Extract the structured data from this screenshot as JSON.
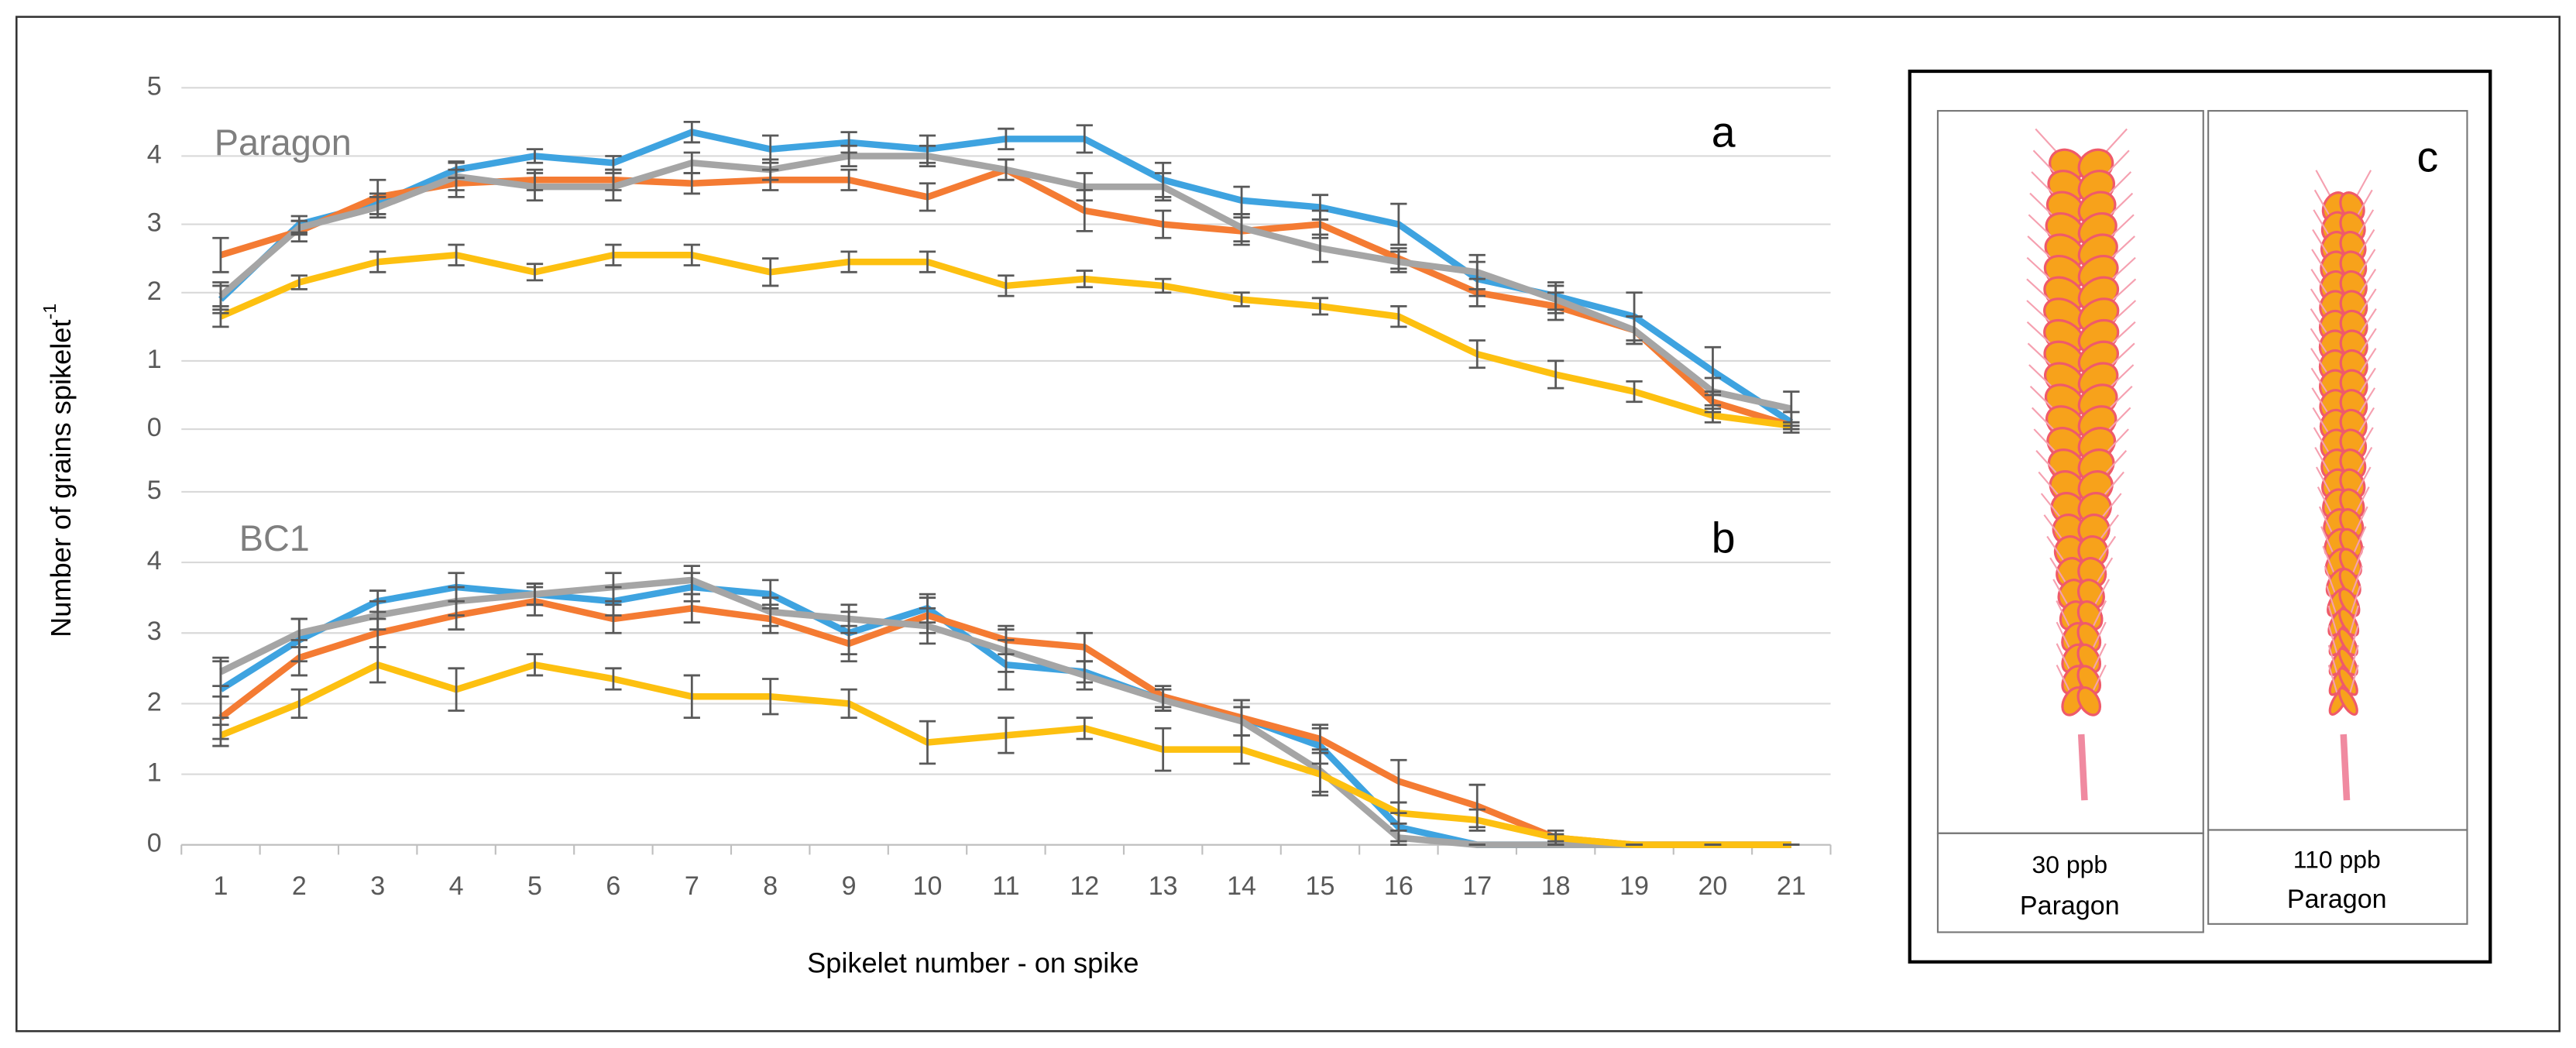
{
  "chart_data": [
    {
      "type": "line",
      "annotation": "Paragon",
      "panel_label": "a",
      "ylabel": "Number of grains spikelet",
      "ylabel_superscript": "-1",
      "ylim": [
        0,
        5
      ],
      "yticks": [
        0,
        1,
        2,
        3,
        4,
        5
      ],
      "grid": true,
      "series": [
        {
          "color": "#3ea3e0",
          "values": [
            1.9,
            3.0,
            3.3,
            3.8,
            4.0,
            3.9,
            4.35,
            4.1,
            4.2,
            4.1,
            4.25,
            4.25,
            3.65,
            3.35,
            3.25,
            3.0,
            2.2,
            1.95,
            1.65,
            0.85,
            0.1
          ],
          "errors": [
            0.2,
            0.12,
            0.15,
            0.12,
            0.1,
            0.1,
            0.15,
            0.2,
            0.15,
            0.2,
            0.15,
            0.2,
            0.25,
            0.2,
            0.18,
            0.3,
            0.25,
            0.2,
            0.35,
            0.35,
            0.15
          ]
        },
        {
          "color": "#f47b33",
          "values": [
            2.55,
            2.9,
            3.4,
            3.6,
            3.65,
            3.65,
            3.6,
            3.65,
            3.65,
            3.4,
            3.8,
            3.2,
            3.0,
            2.9,
            3.0,
            2.5,
            2.0,
            1.8,
            1.45,
            0.4,
            0.05
          ],
          "errors": [
            0.25,
            0.15,
            0.25,
            0.2,
            0.15,
            0.15,
            0.15,
            0.15,
            0.15,
            0.2,
            0.15,
            0.3,
            0.2,
            0.2,
            0.2,
            0.15,
            0.2,
            0.2,
            0.2,
            0.15,
            0.05
          ]
        },
        {
          "color": "#a5a5a5",
          "values": [
            1.95,
            2.95,
            3.25,
            3.7,
            3.55,
            3.55,
            3.9,
            3.8,
            4.0,
            4.0,
            3.8,
            3.55,
            3.55,
            2.95,
            2.65,
            2.45,
            2.3,
            1.9,
            1.45,
            0.55,
            0.3
          ],
          "errors": [
            0.2,
            0.1,
            0.15,
            0.2,
            0.2,
            0.2,
            0.15,
            0.15,
            0.15,
            0.15,
            0.15,
            0.2,
            0.2,
            0.2,
            0.2,
            0.15,
            0.25,
            0.2,
            0.2,
            0.2,
            0.25
          ]
        },
        {
          "color": "#fdc010",
          "values": [
            1.65,
            2.15,
            2.45,
            2.55,
            2.3,
            2.55,
            2.55,
            2.3,
            2.45,
            2.45,
            2.1,
            2.2,
            2.1,
            1.9,
            1.8,
            1.65,
            1.1,
            0.8,
            0.55,
            0.2,
            0.05
          ],
          "errors": [
            0.15,
            0.1,
            0.15,
            0.15,
            0.12,
            0.15,
            0.15,
            0.2,
            0.15,
            0.15,
            0.15,
            0.12,
            0.1,
            0.1,
            0.12,
            0.15,
            0.2,
            0.2,
            0.15,
            0.1,
            0.05
          ]
        }
      ]
    },
    {
      "type": "line",
      "annotation": "BC1",
      "panel_label": "b",
      "xlabel": "Spikelet number - on spike",
      "categories": [
        "1",
        "2",
        "3",
        "4",
        "5",
        "6",
        "7",
        "8",
        "9",
        "10",
        "11",
        "12",
        "13",
        "14",
        "15",
        "16",
        "17",
        "18",
        "19",
        "20",
        "21"
      ],
      "ylim": [
        0,
        5
      ],
      "yticks": [
        0,
        1,
        2,
        3,
        4,
        5
      ],
      "grid": true,
      "series": [
        {
          "color": "#3ea3e0",
          "values": [
            2.2,
            2.9,
            3.45,
            3.65,
            3.55,
            3.45,
            3.65,
            3.55,
            3.0,
            3.35,
            2.55,
            2.45,
            2.05,
            1.8,
            1.4,
            0.25,
            0,
            0,
            0,
            0,
            0
          ],
          "errors": [
            0.4,
            0.3,
            0.15,
            0.2,
            0.15,
            0.2,
            0.2,
            0.2,
            0.3,
            0.2,
            0.35,
            0.15,
            0.15,
            0.25,
            0.25,
            0.2,
            0,
            0,
            0,
            0,
            0
          ]
        },
        {
          "color": "#f47b33",
          "values": [
            1.8,
            2.65,
            3.0,
            3.25,
            3.45,
            3.2,
            3.35,
            3.2,
            2.85,
            3.25,
            2.9,
            2.8,
            2.1,
            1.8,
            1.5,
            0.9,
            0.55,
            0.1,
            0,
            0,
            0
          ],
          "errors": [
            0.3,
            0.25,
            0.2,
            0.2,
            0.2,
            0.2,
            0.2,
            0.2,
            0.25,
            0.25,
            0.2,
            0.2,
            0.15,
            0.25,
            0.2,
            0.3,
            0.3,
            0.1,
            0,
            0,
            0
          ]
        },
        {
          "color": "#a5a5a5",
          "values": [
            2.45,
            3.0,
            3.25,
            3.45,
            3.55,
            3.65,
            3.75,
            3.3,
            3.2,
            3.1,
            2.75,
            2.4,
            2.05,
            1.75,
            1.05,
            0.1,
            0,
            0,
            0,
            0,
            0
          ],
          "errors": [
            0.2,
            0.2,
            0.2,
            0.2,
            0.15,
            0.2,
            0.2,
            0.2,
            0.2,
            0.25,
            0.3,
            0.2,
            0.15,
            0.2,
            0.3,
            0.1,
            0,
            0,
            0,
            0,
            0
          ]
        },
        {
          "color": "#fdc010",
          "values": [
            1.55,
            2.0,
            2.55,
            2.2,
            2.55,
            2.35,
            2.1,
            2.1,
            2.0,
            1.45,
            1.55,
            1.65,
            1.35,
            1.35,
            1.0,
            0.45,
            0.35,
            0.1,
            0,
            0,
            0
          ],
          "errors": [
            0.15,
            0.2,
            0.25,
            0.3,
            0.15,
            0.15,
            0.3,
            0.25,
            0.2,
            0.3,
            0.25,
            0.15,
            0.3,
            0.2,
            0.3,
            0.15,
            0.15,
            0.05,
            0,
            0,
            0
          ]
        }
      ]
    }
  ],
  "panel_c": {
    "label": "c",
    "captions": [
      {
        "line1": "30 ppb",
        "line2": "Paragon"
      },
      {
        "line1": "110 ppb",
        "line2": "Paragon"
      }
    ]
  }
}
